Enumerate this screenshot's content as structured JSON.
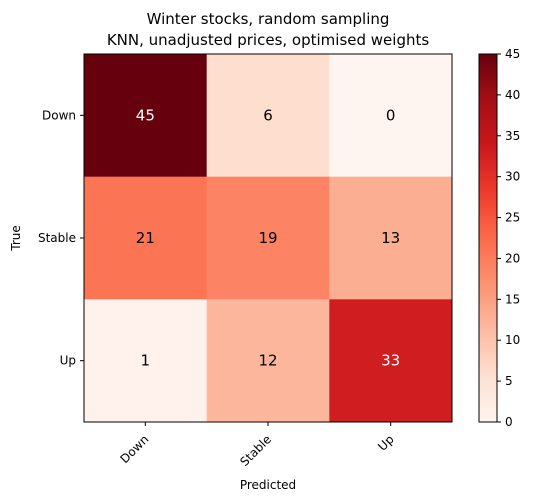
{
  "chart_data": {
    "type": "heatmap",
    "title_lines": [
      "Winter stocks, random sampling",
      "KNN, unadjusted prices, optimised weights"
    ],
    "xlabel": "Predicted",
    "ylabel": "True",
    "x_categories": [
      "Down",
      "Stable",
      "Up"
    ],
    "y_categories": [
      "Down",
      "Stable",
      "Up"
    ],
    "matrix": [
      [
        45,
        6,
        0
      ],
      [
        21,
        19,
        13
      ],
      [
        1,
        12,
        33
      ]
    ],
    "colormap": "Reds",
    "colorbar": {
      "min": 0,
      "max": 45,
      "ticks": [
        0,
        5,
        10,
        15,
        20,
        25,
        30,
        35,
        40,
        45
      ]
    }
  }
}
